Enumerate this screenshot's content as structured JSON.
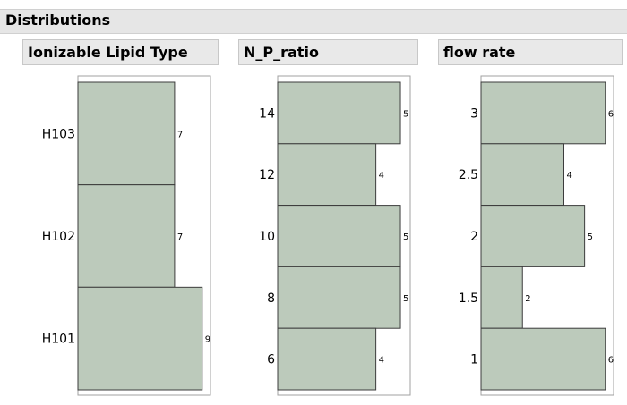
{
  "report": {
    "title": "Distributions"
  },
  "chart_data": [
    {
      "type": "bar",
      "orientation": "horizontal",
      "title": "Ionizable Lipid Type",
      "categories": [
        "H103",
        "H102",
        "H101"
      ],
      "values": [
        7,
        7,
        9
      ],
      "xlim": [
        0,
        9.6
      ]
    },
    {
      "type": "bar",
      "orientation": "horizontal",
      "title": "N_P_ratio",
      "categories": [
        "14",
        "12",
        "10",
        "8",
        "6"
      ],
      "values": [
        5,
        4,
        5,
        5,
        4
      ],
      "xlim": [
        0,
        5.4
      ]
    },
    {
      "type": "bar",
      "orientation": "horizontal",
      "title": "flow rate",
      "categories": [
        "3",
        "2.5",
        "2",
        "1.5",
        "1"
      ],
      "values": [
        6,
        4,
        5,
        2,
        6
      ],
      "xlim": [
        0,
        6.4
      ]
    }
  ],
  "colors": {
    "bar_fill": "#bccabb",
    "bar_stroke": "#3c3c3c",
    "frame": "#a0a0a0"
  }
}
